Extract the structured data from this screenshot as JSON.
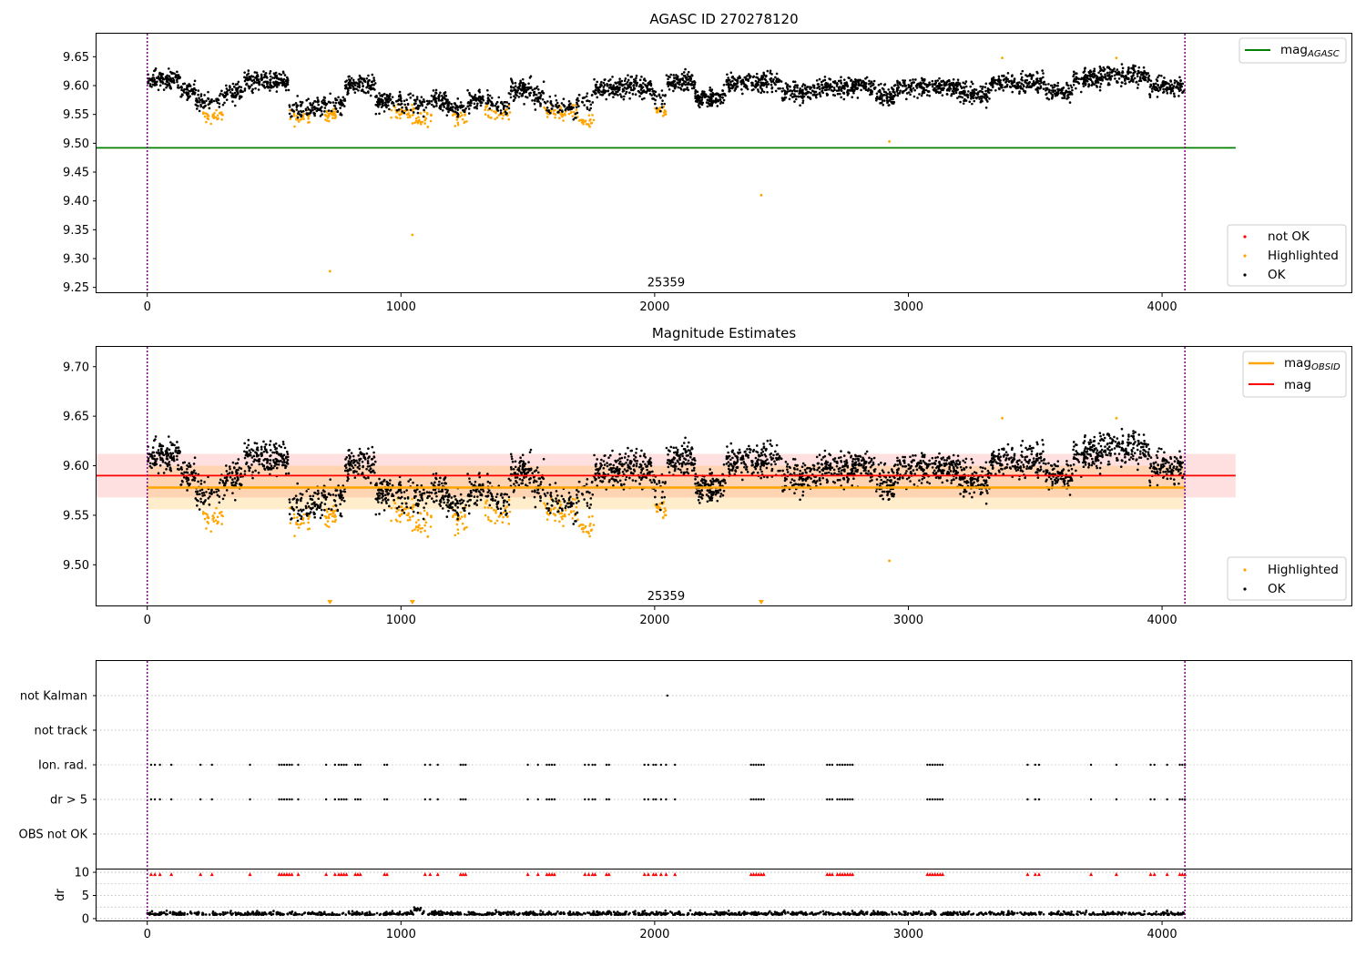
{
  "colors": {
    "ok": "#000000",
    "highlighted": "#ffa500",
    "not_ok": "#ff0000",
    "mag_agasc": "#008000",
    "mag_obsid": "#ffa500",
    "mag": "#ff0000",
    "boundary": "#800080",
    "grid": "#b0b0b0"
  },
  "chart_data": [
    {
      "type": "scatter",
      "title": "AGASC ID 270278120",
      "xlim": [
        -200,
        4750
      ],
      "ylim": [
        9.24,
        9.69
      ],
      "x_ticks": [
        0,
        1000,
        2000,
        3000,
        4000
      ],
      "y_ticks": [
        9.25,
        9.3,
        9.35,
        9.4,
        9.45,
        9.5,
        9.55,
        9.6,
        9.65
      ],
      "x_tick_labels": [
        "0",
        "1000",
        "2000",
        "3000",
        "4000"
      ],
      "y_tick_labels": [
        "9.25",
        "9.30",
        "9.35",
        "9.40",
        "9.45",
        "9.50",
        "9.55",
        "9.60",
        "9.65"
      ],
      "mag_agasc": 9.492,
      "mag_agasc_xrange": [
        -200,
        4290
      ],
      "obsid_boundaries": [
        0,
        4090
      ],
      "obsid_label": "25359",
      "obsid_label_x": 2045,
      "obsid_label_y": 9.258,
      "highlighted_outliers": [
        [
          720,
          9.278
        ],
        [
          1045,
          9.341
        ],
        [
          2420,
          9.41
        ],
        [
          2925,
          9.503
        ],
        [
          3370,
          9.648
        ],
        [
          3820,
          9.648
        ]
      ],
      "legend_line": "mag$_{AGASC}$",
      "legend_line_main": "mag",
      "legend_line_sub": "AGASC",
      "legend_points": [
        "not OK",
        "Highlighted",
        "OK"
      ],
      "grid": false
    },
    {
      "type": "scatter",
      "title": "Magnitude Estimates",
      "xlim": [
        -200,
        4750
      ],
      "ylim": [
        9.458,
        9.72
      ],
      "x_ticks": [
        0,
        1000,
        2000,
        3000,
        4000
      ],
      "y_ticks": [
        9.5,
        9.55,
        9.6,
        9.65,
        9.7
      ],
      "x_tick_labels": [
        "0",
        "1000",
        "2000",
        "3000",
        "4000"
      ],
      "y_tick_labels": [
        "9.50",
        "9.55",
        "9.60",
        "9.65",
        "9.70"
      ],
      "mag": 9.59,
      "mag_band": [
        9.568,
        9.612
      ],
      "mag_xrange": [
        -200,
        4290
      ],
      "mag_obsid": 9.578,
      "mag_obsid_band": [
        9.556,
        9.6
      ],
      "mag_obsid_xrange": [
        0,
        4090
      ],
      "obsid_boundaries": [
        0,
        4090
      ],
      "obsid_label": "25359",
      "obsid_label_x": 2045,
      "obsid_label_y": 9.468,
      "below_range_markers_x": [
        720,
        1045,
        2420
      ],
      "highlighted_outliers": [
        [
          2925,
          9.504
        ],
        [
          3370,
          9.648
        ],
        [
          3820,
          9.648
        ]
      ],
      "legend_lines_main": [
        "mag",
        "mag"
      ],
      "legend_lines_sub": [
        "OBSID",
        ""
      ],
      "legend_points": [
        "Highlighted",
        "OK"
      ],
      "grid": false
    },
    {
      "type": "scatter",
      "title": "",
      "xlim": [
        -200,
        4750
      ],
      "categories": [
        "not Kalman",
        "not track",
        "Ion. rad.",
        "dr > 5",
        "OBS not OK"
      ],
      "flag_points": {
        "not Kalman": [
          2050
        ],
        "not track": [],
        "Ion. rad.": [
          15,
          30,
          50,
          95,
          210,
          255,
          405,
          520,
          530,
          540,
          550,
          560,
          570,
          595,
          705,
          740,
          755,
          765,
          775,
          785,
          820,
          830,
          840,
          935,
          945,
          1095,
          1115,
          1145,
          1235,
          1245,
          1255,
          1500,
          1540,
          1575,
          1585,
          1595,
          1605,
          1725,
          1740,
          1755,
          1765,
          1810,
          1820,
          1960,
          1975,
          1995,
          2005,
          2025,
          2045,
          2080,
          2380,
          2390,
          2400,
          2410,
          2420,
          2430,
          2680,
          2690,
          2700,
          2720,
          2730,
          2740,
          2750,
          2760,
          2770,
          2780,
          3075,
          3085,
          3095,
          3105,
          3115,
          3125,
          3135,
          3470,
          3500,
          3515,
          3720,
          3820,
          3955,
          3970,
          4020,
          4070,
          4080,
          4090
        ],
        "dr > 5": [
          15,
          30,
          50,
          95,
          210,
          255,
          405,
          520,
          530,
          540,
          550,
          560,
          570,
          595,
          705,
          740,
          755,
          765,
          775,
          785,
          820,
          830,
          840,
          935,
          945,
          1095,
          1115,
          1145,
          1235,
          1245,
          1255,
          1500,
          1540,
          1575,
          1585,
          1595,
          1605,
          1725,
          1740,
          1755,
          1765,
          1810,
          1820,
          1960,
          1975,
          1995,
          2005,
          2025,
          2045,
          2080,
          2380,
          2390,
          2400,
          2410,
          2420,
          2430,
          2680,
          2690,
          2700,
          2720,
          2730,
          2740,
          2750,
          2760,
          2770,
          2780,
          3075,
          3085,
          3095,
          3105,
          3115,
          3125,
          3135,
          3470,
          3500,
          3515,
          3720,
          3820,
          3955,
          3970,
          4020,
          4070,
          4080,
          4090
        ],
        "OBS not OK": []
      },
      "obsid_boundaries": [
        0,
        4090
      ],
      "grid": true
    },
    {
      "type": "scatter",
      "xlim": [
        -200,
        4750
      ],
      "ylim": [
        -0.6,
        10.6
      ],
      "x_ticks": [
        0,
        1000,
        2000,
        3000,
        4000
      ],
      "x_tick_labels": [
        "0",
        "1000",
        "2000",
        "3000",
        "4000"
      ],
      "y_ticks": [
        0,
        5,
        10
      ],
      "y_tick_labels": [
        "0",
        "5",
        "10"
      ],
      "ylabel": "dr",
      "dr_gt5_marker_y": 9.6,
      "dr_gt5_x": [
        15,
        30,
        50,
        95,
        210,
        255,
        405,
        520,
        530,
        540,
        550,
        560,
        570,
        595,
        705,
        740,
        755,
        765,
        775,
        785,
        820,
        830,
        840,
        935,
        945,
        1095,
        1115,
        1145,
        1235,
        1245,
        1255,
        1500,
        1540,
        1575,
        1585,
        1595,
        1605,
        1725,
        1740,
        1755,
        1765,
        1810,
        1820,
        1960,
        1975,
        1995,
        2005,
        2025,
        2045,
        2080,
        2380,
        2390,
        2400,
        2410,
        2420,
        2430,
        2680,
        2690,
        2700,
        2720,
        2730,
        2740,
        2750,
        2760,
        2770,
        2780,
        3075,
        3085,
        3095,
        3105,
        3115,
        3125,
        3135,
        3470,
        3500,
        3515,
        3720,
        3820,
        3955,
        3970,
        4020,
        4070,
        4080,
        4090
      ],
      "obsid_boundaries": [
        0,
        4090
      ],
      "grid": true
    }
  ]
}
